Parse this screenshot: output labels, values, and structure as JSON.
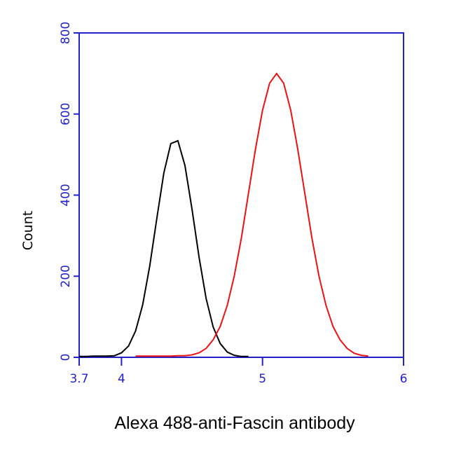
{
  "chart_data": {
    "type": "line",
    "ylabel": "Count",
    "xlabel": "Alexa 488-anti-Fascin antibody",
    "x": [
      3.7,
      3.75,
      3.8,
      3.85,
      3.9,
      3.95,
      4.0,
      4.05,
      4.1,
      4.15,
      4.2,
      4.25,
      4.3,
      4.35,
      4.4,
      4.45,
      4.5,
      4.55,
      4.6,
      4.65,
      4.7,
      4.75,
      4.8,
      4.85,
      4.9,
      4.95,
      5.0,
      5.05,
      5.1,
      5.15,
      5.2,
      5.25,
      5.3,
      5.35,
      5.4,
      5.45,
      5.5,
      5.55,
      5.6,
      5.65,
      5.7,
      5.75
    ],
    "series": [
      {
        "color": "#000000",
        "values": [
          2,
          2,
          3,
          3,
          3,
          4,
          11,
          28,
          65,
          129,
          225,
          341,
          454,
          527,
          534,
          473,
          366,
          247,
          145,
          75,
          34,
          13,
          5,
          2,
          2,
          null,
          null,
          null,
          null,
          null,
          null,
          null,
          null,
          null,
          null,
          null,
          null,
          null,
          null,
          null,
          null,
          null
        ]
      },
      {
        "color": "#ee1111",
        "values": [
          null,
          null,
          null,
          null,
          null,
          null,
          null,
          null,
          3,
          3,
          3,
          3,
          3,
          3,
          4,
          4,
          6,
          11,
          22,
          43,
          76,
          128,
          201,
          294,
          404,
          513,
          609,
          676,
          700,
          676,
          609,
          513,
          404,
          294,
          201,
          128,
          76,
          43,
          22,
          10,
          5,
          3
        ]
      }
    ],
    "xlim": [
      3.7,
      6
    ],
    "xticks": [
      3.7,
      4,
      5,
      6
    ],
    "ylim": [
      0,
      800
    ],
    "yticks": [
      0,
      200,
      400,
      600,
      800
    ],
    "axis_color": "#2222cc"
  }
}
